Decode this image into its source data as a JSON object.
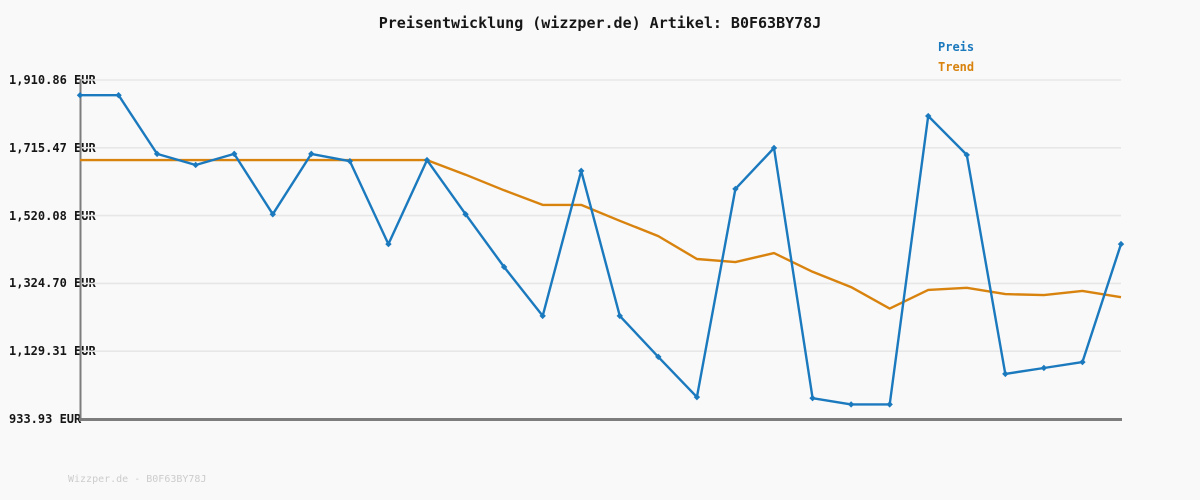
{
  "header": {
    "title": "Preisentwicklung (wizzper.de) Artikel: B0F63BY78J"
  },
  "legend": {
    "preis_label": "Preis",
    "trend_label": "Trend"
  },
  "footer": {
    "watermark": "Wizzper.de - B0F63BY78J"
  },
  "colors": {
    "price_line": "#1b79be",
    "trend_line": "#d9830f",
    "axis": "#7d7d7d",
    "grid": "#e7e7e7",
    "background": "#f9f9f9",
    "text": "#161616",
    "watermark": "#cccccc"
  },
  "chart_data": {
    "type": "line",
    "title": "Preisentwicklung (wizzper.de) Artikel: B0F63BY78J",
    "currency_unit": "EUR",
    "xlabel": "",
    "ylabel": "",
    "x_tick_labels": [],
    "y_ticks": [
      "1,910.86 EUR",
      "1,715.47 EUR",
      "1,520.08 EUR",
      "1,324.70 EUR",
      "1,129.31 EUR",
      "933.93 EUR"
    ],
    "y_tick_values": [
      1910.86,
      1715.47,
      1520.08,
      1324.7,
      1129.31,
      933.93
    ],
    "ylim": [
      933.93,
      1910.86
    ],
    "x_count": 28,
    "grid": true,
    "legend_position": "top-right",
    "series": [
      {
        "name": "Preis",
        "style": "line-with-diamond-markers",
        "values": [
          1867,
          1867,
          1698,
          1666,
          1698,
          1524,
          1698,
          1677,
          1438,
          1680,
          1524,
          1372,
          1231,
          1649,
          1231,
          1113,
          997,
          1597,
          1715,
          994,
          976,
          976,
          1807,
          1695,
          1064,
          1081,
          1098,
          1438
        ]
      },
      {
        "name": "Trend",
        "style": "line",
        "values": [
          1680,
          1680,
          1680,
          1680,
          1680,
          1680,
          1680,
          1680,
          1680,
          1680,
          1638,
          1593,
          1551,
          1551,
          1505,
          1461,
          1395,
          1386,
          1412,
          1358,
          1314,
          1252,
          1306,
          1312,
          1294,
          1291,
          1303,
          1285
        ]
      }
    ]
  }
}
